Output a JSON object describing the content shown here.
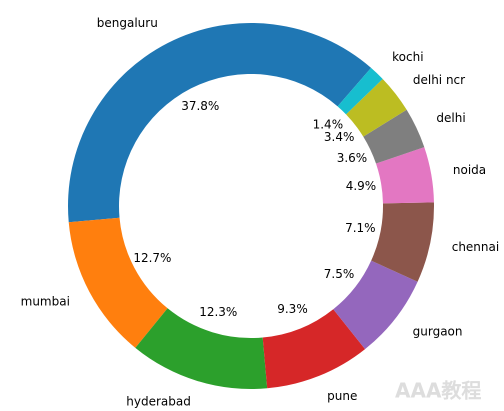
{
  "chart_data": {
    "type": "donut",
    "categories": [
      "bengaluru",
      "mumbai",
      "hyderabad",
      "pune",
      "gurgaon",
      "chennai",
      "noida",
      "delhi",
      "delhi ncr",
      "kochi"
    ],
    "values": [
      37.8,
      12.7,
      12.3,
      9.3,
      7.5,
      7.1,
      4.9,
      3.6,
      3.4,
      1.4
    ],
    "value_labels": [
      "37.8%",
      "12.7%",
      "12.3%",
      "9.3%",
      "7.5%",
      "7.1%",
      "4.9%",
      "3.6%",
      "3.4%",
      "1.4%"
    ],
    "colors": [
      "#1f77b4",
      "#ff7f0e",
      "#2ca02c",
      "#d62728",
      "#9467bd",
      "#8c564b",
      "#e377c2",
      "#7f7f7f",
      "#bcbd22",
      "#17becf"
    ]
  },
  "watermark": "AAA教程"
}
